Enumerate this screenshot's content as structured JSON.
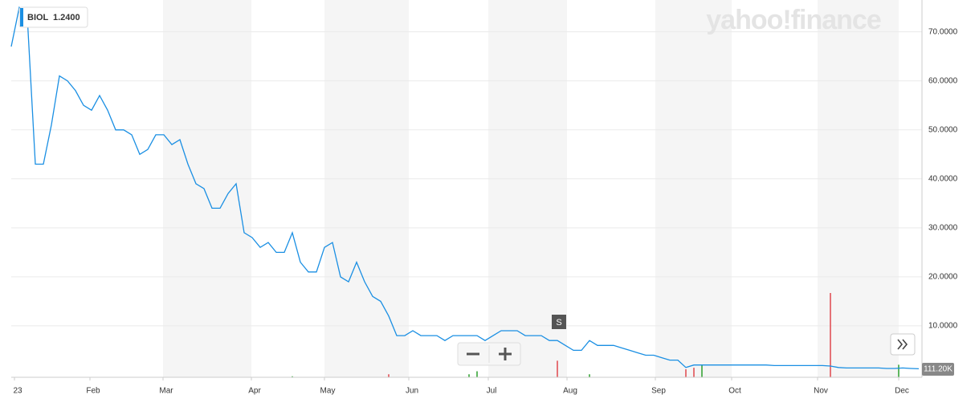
{
  "chart_data": {
    "type": "line",
    "symbol": "BIOL",
    "price_label": "1.2400",
    "brand": "yahoo!finance",
    "event_marker": "S",
    "xlim": [
      0,
      113.4
    ],
    "xticks": [
      {
        "value": 0.4,
        "label": "23"
      },
      {
        "value": 9.8,
        "label": "Feb"
      },
      {
        "value": 18.9,
        "label": "Mar"
      },
      {
        "value": 29.9,
        "label": "Apr"
      },
      {
        "value": 39,
        "label": "May"
      },
      {
        "value": 49.5,
        "label": "Jun"
      },
      {
        "value": 59.4,
        "label": "Jul"
      },
      {
        "value": 69.2,
        "label": "Aug"
      },
      {
        "value": 80.2,
        "label": "Sep"
      },
      {
        "value": 89.7,
        "label": "Oct"
      },
      {
        "value": 100.4,
        "label": "Nov"
      },
      {
        "value": 110.5,
        "label": "Dec"
      }
    ],
    "ylim": [
      -0.5,
      76.5
    ],
    "yticks": [
      {
        "value": 10,
        "label": "10.0000"
      },
      {
        "value": 20,
        "label": "20.0000"
      },
      {
        "value": 30,
        "label": "30.0000"
      },
      {
        "value": 40,
        "label": "40.0000"
      },
      {
        "value": 50,
        "label": "50.0000"
      },
      {
        "value": 60,
        "label": "60.0000"
      },
      {
        "value": 70,
        "label": "70.0000"
      }
    ],
    "grid": true,
    "series": [
      {
        "name": "BIOL",
        "color": "#1a8fe3",
        "values": [
          67,
          75,
          73,
          43,
          43,
          51,
          61,
          60,
          58,
          55,
          54,
          57,
          54,
          50,
          50,
          49,
          45,
          46,
          49,
          49,
          47,
          48,
          43,
          39,
          38,
          34,
          34,
          37,
          39,
          29,
          28,
          26,
          27,
          25,
          25,
          29,
          23,
          21,
          21,
          26,
          27,
          20,
          19,
          23,
          19,
          16,
          15,
          12,
          8,
          8,
          9,
          8,
          8,
          8,
          7,
          8,
          8,
          8,
          8,
          7,
          8,
          9,
          9,
          9,
          8,
          8,
          8,
          7,
          7,
          6,
          5,
          5,
          7,
          6,
          6,
          6,
          5.5,
          5,
          4.5,
          4,
          4,
          3.5,
          3,
          3,
          1.5,
          2,
          2,
          2,
          2,
          2,
          2,
          2,
          2,
          2,
          2,
          1.9,
          1.9,
          1.9,
          1.9,
          1.9,
          1.9,
          1.9,
          1.8,
          1.5,
          1.4,
          1.4,
          1.4,
          1.4,
          1.4,
          1.3,
          1.3,
          1.4,
          1.3,
          1.24
        ]
      }
    ],
    "volume": {
      "label": "111.20K",
      "ylim": [
        0,
        2000
      ],
      "x": [
        35,
        47,
        57,
        58,
        68,
        72,
        84,
        85,
        86,
        102,
        110.5
      ],
      "values": [
        20,
        60,
        60,
        120,
        330,
        60,
        160,
        190,
        250,
        1680,
        250
      ],
      "colors": [
        "#2ca02c",
        "#e0474c",
        "#2ca02c",
        "#2ca02c",
        "#e0474c",
        "#2ca02c",
        "#e0474c",
        "#e0474c",
        "#2ca02c",
        "#e0474c",
        "#2ca02c"
      ]
    }
  }
}
